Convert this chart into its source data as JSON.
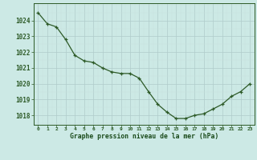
{
  "x": [
    0,
    1,
    2,
    3,
    4,
    5,
    6,
    7,
    8,
    9,
    10,
    11,
    12,
    13,
    14,
    15,
    16,
    17,
    18,
    19,
    20,
    21,
    22,
    23
  ],
  "y": [
    1024.5,
    1023.8,
    1023.6,
    1022.8,
    1021.8,
    1021.45,
    1021.35,
    1021.0,
    1020.75,
    1020.65,
    1020.65,
    1020.35,
    1019.5,
    1018.7,
    1018.2,
    1017.8,
    1017.8,
    1018.0,
    1018.1,
    1018.4,
    1018.7,
    1019.2,
    1019.5,
    1020.0
  ],
  "line_color": "#2d5a27",
  "marker": "+",
  "marker_size": 3,
  "background_color": "#cce9e5",
  "grid_major_color": "#b0ccca",
  "grid_minor_color": "#c8e2df",
  "tick_label_color": "#1a4a1a",
  "xlabel": "Graphe pression niveau de la mer (hPa)",
  "xlabel_color": "#1a4a1a",
  "ylim": [
    1017.4,
    1025.1
  ],
  "yticks": [
    1018,
    1019,
    1020,
    1021,
    1022,
    1023,
    1024
  ],
  "xticks": [
    0,
    1,
    2,
    3,
    4,
    5,
    6,
    7,
    8,
    9,
    10,
    11,
    12,
    13,
    14,
    15,
    16,
    17,
    18,
    19,
    20,
    21,
    22,
    23
  ],
  "xtick_labels": [
    "0",
    "1",
    "2",
    "3",
    "4",
    "5",
    "6",
    "7",
    "8",
    "9",
    "10",
    "11",
    "12",
    "13",
    "14",
    "15",
    "16",
    "17",
    "18",
    "19",
    "20",
    "21",
    "22",
    "23"
  ],
  "spine_color": "#2d5a27",
  "tick_color": "#2d5a27"
}
